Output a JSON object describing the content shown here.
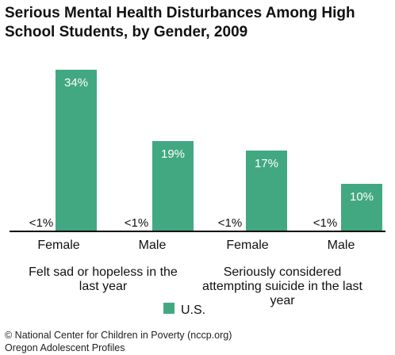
{
  "chart_data": {
    "type": "bar",
    "title": "Serious Mental Health Disturbances Among High School Students, by Gender, 2009",
    "title_lines": [
      "Serious Mental Health Disturbances Among High",
      "School Students, by Gender, 2009"
    ],
    "groups": [
      {
        "label": "Felt sad or hopeless in the last year",
        "label_lines": [
          "Felt sad or hopeless in the",
          "last year"
        ],
        "categories": [
          "Female",
          "Male"
        ]
      },
      {
        "label": "Seriously considered attempting suicide in the last year",
        "label_lines": [
          "Seriously considered",
          "attempting suicide in the last",
          "year"
        ],
        "categories": [
          "Female",
          "Male"
        ]
      }
    ],
    "categories": [
      "Female",
      "Male",
      "Female",
      "Male"
    ],
    "series": [
      {
        "name": "",
        "values": [
          0.5,
          0.5,
          0.5,
          0.5
        ],
        "value_labels": [
          "<1%",
          "<1%",
          "<1%",
          "<1%"
        ],
        "color": ""
      },
      {
        "name": "U.S.",
        "values": [
          34,
          19,
          17,
          10
        ],
        "value_labels": [
          "34%",
          "19%",
          "17%",
          "10%"
        ],
        "color": "#42a882"
      }
    ],
    "ylim": [
      0,
      36
    ],
    "grid": false,
    "legend_position": "bottom-center",
    "source_lines": [
      "© National Center for Children in Poverty (nccp.org)",
      "Oregon Adolescent Profiles"
    ]
  }
}
